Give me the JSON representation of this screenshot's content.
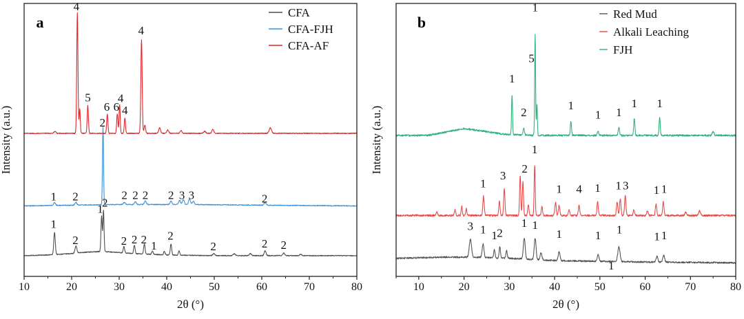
{
  "chart_data": [
    {
      "type": "line",
      "panel_label": "a",
      "xlabel": "2θ (°)",
      "ylabel": "Intensity (a.u.)",
      "xlim": [
        10,
        80
      ],
      "xticks": [
        10,
        20,
        30,
        40,
        50,
        60,
        70,
        80
      ],
      "legend_position": "top-right",
      "series": [
        {
          "name": "CFA",
          "color": "#4d4d4d",
          "offset": 0.0,
          "noise": 0.006,
          "background": [
            [
              10,
              0.0
            ],
            [
              15,
              0.01
            ],
            [
              20,
              0.03
            ],
            [
              23,
              0.05
            ],
            [
              26,
              0.06
            ],
            [
              29,
              0.05
            ],
            [
              33,
              0.03
            ],
            [
              40,
              0.01
            ],
            [
              50,
              0.0
            ],
            [
              80,
              0.0
            ]
          ],
          "peaks": [
            [
              16.4,
              0.32,
              0.16
            ],
            [
              20.9,
              0.1,
              0.2
            ],
            [
              26.3,
              0.52,
              0.13
            ],
            [
              26.7,
              0.6,
              0.12
            ],
            [
              31.0,
              0.09,
              0.15
            ],
            [
              33.2,
              0.12,
              0.15
            ],
            [
              35.3,
              0.15,
              0.15
            ],
            [
              37.0,
              0.05,
              0.15
            ],
            [
              39.5,
              0.05,
              0.15
            ],
            [
              40.9,
              0.16,
              0.15
            ],
            [
              42.6,
              0.06,
              0.15
            ],
            [
              49.9,
              0.03,
              0.2
            ],
            [
              54.2,
              0.03,
              0.2
            ],
            [
              57.6,
              0.03,
              0.2
            ],
            [
              60.7,
              0.07,
              0.2
            ],
            [
              64.6,
              0.04,
              0.2
            ],
            [
              68.2,
              0.02,
              0.2
            ]
          ]
        },
        {
          "name": "CFA-FJH",
          "color": "#3a8fd6",
          "offset": 0.72,
          "noise": 0.006,
          "background": [
            [
              10,
              0.0
            ],
            [
              20,
              0.01
            ],
            [
              30,
              0.02
            ],
            [
              45,
              0.02
            ],
            [
              60,
              0.01
            ],
            [
              80,
              0.0
            ]
          ],
          "peaks": [
            [
              16.4,
              0.04,
              0.2
            ],
            [
              20.9,
              0.04,
              0.2
            ],
            [
              26.6,
              1.12,
              0.11
            ],
            [
              31.1,
              0.03,
              0.2
            ],
            [
              33.4,
              0.04,
              0.2
            ],
            [
              35.5,
              0.05,
              0.2
            ],
            [
              40.9,
              0.05,
              0.2
            ],
            [
              42.7,
              0.06,
              0.2
            ],
            [
              43.5,
              0.07,
              0.2
            ],
            [
              44.8,
              0.08,
              0.2
            ],
            [
              45.6,
              0.05,
              0.2
            ],
            [
              60.7,
              0.04,
              0.2
            ]
          ]
        },
        {
          "name": "CFA-AF",
          "color": "#e0262a",
          "offset": 1.77,
          "noise": 0.006,
          "background": [
            [
              10,
              0.0
            ],
            [
              20,
              0.0
            ],
            [
              30,
              0.0
            ],
            [
              80,
              0.0
            ]
          ],
          "peaks": [
            [
              16.5,
              0.03,
              0.2
            ],
            [
              21.2,
              1.75,
              0.13
            ],
            [
              21.7,
              0.35,
              0.12
            ],
            [
              23.4,
              0.4,
              0.13
            ],
            [
              27.5,
              0.28,
              0.13
            ],
            [
              29.6,
              0.28,
              0.13
            ],
            [
              30.1,
              0.42,
              0.12
            ],
            [
              31.2,
              0.22,
              0.13
            ],
            [
              34.7,
              1.36,
              0.14
            ],
            [
              35.4,
              0.12,
              0.15
            ],
            [
              38.5,
              0.08,
              0.2
            ],
            [
              40.2,
              0.05,
              0.2
            ],
            [
              43.0,
              0.04,
              0.2
            ],
            [
              48.0,
              0.03,
              0.2
            ],
            [
              49.7,
              0.06,
              0.2
            ],
            [
              61.8,
              0.08,
              0.25
            ]
          ]
        }
      ],
      "annotations": [
        {
          "text": "1",
          "x": 16.2,
          "y": 0.4
        },
        {
          "text": "2",
          "x": 20.8,
          "y": 0.17
        },
        {
          "text": "1",
          "x": 26.0,
          "y": 0.62
        },
        {
          "text": "2",
          "x": 27.0,
          "y": 0.71
        },
        {
          "text": "2",
          "x": 31.0,
          "y": 0.16
        },
        {
          "text": "2",
          "x": 33.2,
          "y": 0.18
        },
        {
          "text": "2",
          "x": 35.2,
          "y": 0.18
        },
        {
          "text": "1",
          "x": 37.3,
          "y": 0.09
        },
        {
          "text": "2",
          "x": 40.8,
          "y": 0.23
        },
        {
          "text": "2",
          "x": 49.8,
          "y": 0.08
        },
        {
          "text": "2",
          "x": 60.6,
          "y": 0.12
        },
        {
          "text": "2",
          "x": 64.6,
          "y": 0.1
        },
        {
          "text": "1",
          "x": 16.2,
          "y": 0.8
        },
        {
          "text": "2",
          "x": 20.8,
          "y": 0.8
        },
        {
          "text": "2",
          "x": 26.5,
          "y": 1.87
        },
        {
          "text": "2",
          "x": 31.1,
          "y": 0.82
        },
        {
          "text": "2",
          "x": 33.4,
          "y": 0.82
        },
        {
          "text": "2",
          "x": 35.5,
          "y": 0.82
        },
        {
          "text": "2",
          "x": 40.9,
          "y": 0.82
        },
        {
          "text": "3",
          "x": 43.2,
          "y": 0.82
        },
        {
          "text": "3",
          "x": 45.2,
          "y": 0.82
        },
        {
          "text": "2",
          "x": 60.6,
          "y": 0.77
        },
        {
          "text": "4",
          "x": 21.0,
          "y": 3.55
        },
        {
          "text": "5",
          "x": 23.4,
          "y": 2.23
        },
        {
          "text": "6",
          "x": 27.4,
          "y": 2.1
        },
        {
          "text": "6",
          "x": 29.4,
          "y": 2.1
        },
        {
          "text": "4",
          "x": 30.3,
          "y": 2.22
        },
        {
          "text": "4",
          "x": 31.2,
          "y": 2.05
        },
        {
          "text": "4",
          "x": 34.6,
          "y": 3.2
        }
      ]
    },
    {
      "type": "line",
      "panel_label": "b",
      "xlabel": "2θ (°)",
      "ylabel": "Intensity (a.u.)",
      "xlim": [
        5,
        80
      ],
      "xticks": [
        10,
        20,
        30,
        40,
        50,
        60,
        70,
        80
      ],
      "legend_position": "top-right",
      "series": [
        {
          "name": "Red Mud",
          "color": "#555555",
          "offset": 0.0,
          "noise": 0.007,
          "background": [
            [
              5,
              0.04
            ],
            [
              15,
              0.05
            ],
            [
              22,
              0.05
            ],
            [
              30,
              0.04
            ],
            [
              40,
              0.02
            ],
            [
              55,
              0.01
            ],
            [
              80,
              0.0
            ]
          ],
          "peaks": [
            [
              21.4,
              0.16,
              0.25
            ],
            [
              24.2,
              0.12,
              0.2
            ],
            [
              26.7,
              0.07,
              0.15
            ],
            [
              27.9,
              0.1,
              0.15
            ],
            [
              29.4,
              0.07,
              0.15
            ],
            [
              33.3,
              0.19,
              0.2
            ],
            [
              35.7,
              0.19,
              0.2
            ],
            [
              37.0,
              0.06,
              0.2
            ],
            [
              41.0,
              0.08,
              0.2
            ],
            [
              49.6,
              0.06,
              0.2
            ],
            [
              54.2,
              0.13,
              0.25
            ],
            [
              62.6,
              0.05,
              0.2
            ],
            [
              64.1,
              0.06,
              0.2
            ]
          ]
        },
        {
          "name": "Alkali Leaching",
          "color": "#e84a4a",
          "offset": 0.42,
          "noise": 0.008,
          "background": [
            [
              5,
              0.0
            ],
            [
              80,
              0.0
            ]
          ],
          "peaks": [
            [
              14.0,
              0.03,
              0.15
            ],
            [
              18.0,
              0.05,
              0.15
            ],
            [
              19.5,
              0.08,
              0.12
            ],
            [
              20.5,
              0.06,
              0.12
            ],
            [
              24.3,
              0.17,
              0.15
            ],
            [
              27.8,
              0.13,
              0.13
            ],
            [
              28.9,
              0.24,
              0.14
            ],
            [
              32.4,
              0.36,
              0.13
            ],
            [
              33.0,
              0.3,
              0.13
            ],
            [
              34.2,
              0.1,
              0.13
            ],
            [
              35.6,
              0.45,
              0.12
            ],
            [
              37.2,
              0.08,
              0.15
            ],
            [
              40.2,
              0.12,
              0.15
            ],
            [
              41.0,
              0.09,
              0.15
            ],
            [
              43.2,
              0.05,
              0.15
            ],
            [
              45.4,
              0.09,
              0.15
            ],
            [
              49.5,
              0.12,
              0.15
            ],
            [
              53.8,
              0.12,
              0.15
            ],
            [
              54.5,
              0.15,
              0.15
            ],
            [
              55.6,
              0.18,
              0.15
            ],
            [
              57.5,
              0.05,
              0.15
            ],
            [
              60.5,
              0.04,
              0.15
            ],
            [
              62.4,
              0.1,
              0.15
            ],
            [
              64.0,
              0.12,
              0.15
            ],
            [
              69.0,
              0.03,
              0.2
            ],
            [
              72.0,
              0.04,
              0.2
            ]
          ]
        },
        {
          "name": "FJH",
          "color": "#2fb37c",
          "offset": 1.13,
          "noise": 0.008,
          "background": [
            [
              5,
              0.0
            ],
            [
              12,
              0.0
            ],
            [
              16,
              0.03
            ],
            [
              20,
              0.06
            ],
            [
              24,
              0.04
            ],
            [
              29,
              0.01
            ],
            [
              35,
              0.0
            ],
            [
              80,
              0.0
            ]
          ],
          "peaks": [
            [
              30.6,
              0.35,
              0.11
            ],
            [
              33.2,
              0.06,
              0.15
            ],
            [
              35.7,
              0.9,
              0.1
            ],
            [
              36.1,
              0.28,
              0.1
            ],
            [
              43.6,
              0.12,
              0.13
            ],
            [
              49.6,
              0.04,
              0.15
            ],
            [
              54.2,
              0.07,
              0.15
            ],
            [
              57.6,
              0.15,
              0.13
            ],
            [
              63.2,
              0.16,
              0.13
            ],
            [
              75.0,
              0.03,
              0.2
            ]
          ]
        }
      ],
      "annotations": [
        {
          "text": "3",
          "x": 21.4,
          "y": 0.29
        },
        {
          "text": "1",
          "x": 24.2,
          "y": 0.26
        },
        {
          "text": "1",
          "x": 26.7,
          "y": 0.21
        },
        {
          "text": "2",
          "x": 27.9,
          "y": 0.23
        },
        {
          "text": "1",
          "x": 33.3,
          "y": 0.32
        },
        {
          "text": "1",
          "x": 35.7,
          "y": 0.3
        },
        {
          "text": "1",
          "x": 41.0,
          "y": 0.22
        },
        {
          "text": "1",
          "x": 49.6,
          "y": 0.21
        },
        {
          "text": "1",
          "x": 54.3,
          "y": 0.26
        },
        {
          "text": "1",
          "x": 62.6,
          "y": 0.2
        },
        {
          "text": "1",
          "x": 64.2,
          "y": 0.21
        },
        {
          "text": "1",
          "x": 52.5,
          "y": -0.06
        },
        {
          "text": "1",
          "x": 24.2,
          "y": 0.67
        },
        {
          "text": "3",
          "x": 28.6,
          "y": 0.74
        },
        {
          "text": "2",
          "x": 33.4,
          "y": 0.8
        },
        {
          "text": "1",
          "x": 35.6,
          "y": 0.97
        },
        {
          "text": "1",
          "x": 41.0,
          "y": 0.62
        },
        {
          "text": "4",
          "x": 45.4,
          "y": 0.62
        },
        {
          "text": "1",
          "x": 49.5,
          "y": 0.63
        },
        {
          "text": "1",
          "x": 54.1,
          "y": 0.65
        },
        {
          "text": "3",
          "x": 55.7,
          "y": 0.65
        },
        {
          "text": "1",
          "x": 62.5,
          "y": 0.61
        },
        {
          "text": "1",
          "x": 64.2,
          "y": 0.62
        },
        {
          "text": "1",
          "x": 35.7,
          "y": 2.23
        },
        {
          "text": "5",
          "x": 34.9,
          "y": 1.78
        },
        {
          "text": "1",
          "x": 30.6,
          "y": 1.6
        },
        {
          "text": "2",
          "x": 33.2,
          "y": 1.3
        },
        {
          "text": "1",
          "x": 43.6,
          "y": 1.36
        },
        {
          "text": "1",
          "x": 49.6,
          "y": 1.28
        },
        {
          "text": "1",
          "x": 54.2,
          "y": 1.3
        },
        {
          "text": "1",
          "x": 57.6,
          "y": 1.38
        },
        {
          "text": "1",
          "x": 63.2,
          "y": 1.38
        }
      ]
    }
  ]
}
